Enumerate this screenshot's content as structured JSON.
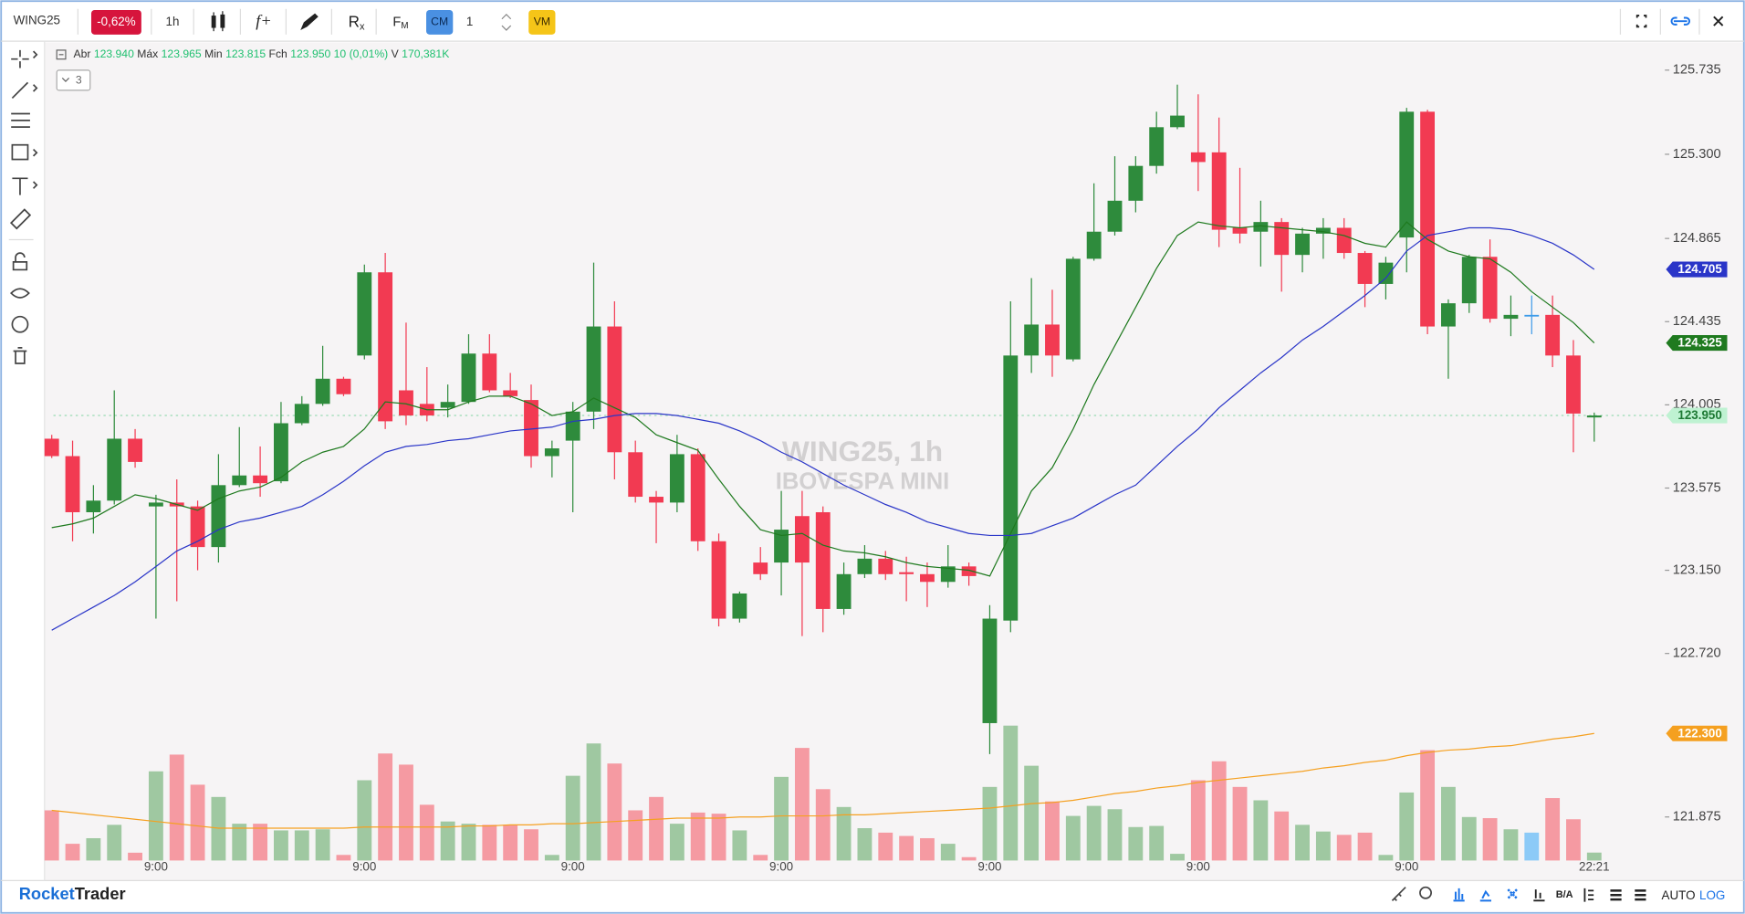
{
  "toolbar": {
    "symbol": "WING25",
    "change": "-0,62%",
    "interval": "1h",
    "indicators": "f+",
    "replay": "R",
    "replay_sub": "x",
    "fm": "F",
    "fm_sub": "M",
    "cm": "CM",
    "quantity": "1",
    "vm": "VM"
  },
  "legend": {
    "items": [
      {
        "label": "Abr",
        "value": "123.940"
      },
      {
        "label": "Máx",
        "value": "123.965"
      },
      {
        "label": "Min",
        "value": "123.815"
      },
      {
        "label": "Fch",
        "value": "123.950"
      }
    ],
    "change": "10 (0,01%)",
    "volume_label": "V",
    "volume": "170,381K",
    "collapsed_count": "3"
  },
  "watermark": {
    "title": "WING25, 1h",
    "subtitle": "IBOVESPA MINI"
  },
  "footer": {
    "brand_first": "Rocket",
    "brand_second": "Trader",
    "bid_ask": "B/A",
    "auto": "AUTO",
    "log": "LOG"
  },
  "chart_data": {
    "type": "candlestick",
    "categories": [
      null,
      null,
      null,
      null,
      null,
      "9:00",
      null,
      null,
      null,
      null,
      null,
      null,
      null,
      null,
      null,
      "9:00",
      null,
      null,
      null,
      null,
      null,
      null,
      null,
      null,
      null,
      "9:00",
      null,
      null,
      null,
      null,
      null,
      null,
      null,
      null,
      null,
      "9:00",
      null,
      null,
      null,
      null,
      null,
      null,
      null,
      null,
      null,
      "9:00",
      null,
      null,
      null,
      null,
      null,
      null,
      null,
      null,
      null,
      "9:00",
      null,
      null,
      null,
      null,
      null,
      null,
      null,
      null,
      null,
      "9:00",
      null,
      null,
      null,
      null,
      null,
      null,
      null,
      null,
      "22:21"
    ],
    "open": [
      123.83,
      123.74,
      123.45,
      123.51,
      123.83,
      123.48,
      123.5,
      123.48,
      123.27,
      123.59,
      123.64,
      123.61,
      123.91,
      124.01,
      124.14,
      124.26,
      124.69,
      124.08,
      124.01,
      123.99,
      124.02,
      124.27,
      124.08,
      124.03,
      123.74,
      123.82,
      123.97,
      124.41,
      123.76,
      123.53,
      123.5,
      123.75,
      123.3,
      122.9,
      123.19,
      123.19,
      123.43,
      123.45,
      122.95,
      123.13,
      123.21,
      123.14,
      123.13,
      123.09,
      123.17,
      122.36,
      122.89,
      124.26,
      124.42,
      124.24,
      124.76,
      124.9,
      125.06,
      125.24,
      125.44,
      125.31,
      125.31,
      124.92,
      124.9,
      124.95,
      124.78,
      124.89,
      124.92,
      124.79,
      124.63,
      124.87,
      125.52,
      124.41,
      124.53,
      124.77,
      124.45,
      124.47,
      124.47,
      124.26,
      123.94
    ],
    "high": [
      123.85,
      123.82,
      123.59,
      124.08,
      123.88,
      123.54,
      123.62,
      123.51,
      123.75,
      123.89,
      123.79,
      124.02,
      124.05,
      124.31,
      124.15,
      124.73,
      124.79,
      124.43,
      124.2,
      124.11,
      124.37,
      124.37,
      124.17,
      124.11,
      123.82,
      124.02,
      124.74,
      124.54,
      123.82,
      123.56,
      123.85,
      123.78,
      123.34,
      123.04,
      123.27,
      123.56,
      123.56,
      123.48,
      123.19,
      123.28,
      123.25,
      123.22,
      123.19,
      123.28,
      123.19,
      122.97,
      124.54,
      124.66,
      124.6,
      124.77,
      125.15,
      125.29,
      125.29,
      125.52,
      125.66,
      125.61,
      125.49,
      125.23,
      125.06,
      124.97,
      124.92,
      124.97,
      124.97,
      124.8,
      124.77,
      125.54,
      125.53,
      124.55,
      124.78,
      124.86,
      124.57,
      124.57,
      124.57,
      124.34,
      123.965
    ],
    "low": [
      123.73,
      123.3,
      123.34,
      123.49,
      123.68,
      122.9,
      122.99,
      123.15,
      123.19,
      123.58,
      123.53,
      123.6,
      123.9,
      124.0,
      124.05,
      124.24,
      123.88,
      123.9,
      123.92,
      123.94,
      124.01,
      124.07,
      124.04,
      123.68,
      123.63,
      123.45,
      123.88,
      123.62,
      123.5,
      123.29,
      123.45,
      123.25,
      122.86,
      122.88,
      123.1,
      123.02,
      122.81,
      122.83,
      122.92,
      123.11,
      123.1,
      122.99,
      122.96,
      123.06,
      123.07,
      122.2,
      122.83,
      124.17,
      124.15,
      124.23,
      124.75,
      124.88,
      125.0,
      125.2,
      125.43,
      125.11,
      124.82,
      124.84,
      124.72,
      124.59,
      124.69,
      124.76,
      124.76,
      124.51,
      124.55,
      124.69,
      124.37,
      124.14,
      124.48,
      124.43,
      124.36,
      124.37,
      124.2,
      123.76,
      123.815
    ],
    "close": [
      123.74,
      123.45,
      123.51,
      123.83,
      123.71,
      123.5,
      123.48,
      123.27,
      123.59,
      123.64,
      123.6,
      123.91,
      124.01,
      124.14,
      124.06,
      124.69,
      123.92,
      123.95,
      123.95,
      124.02,
      124.27,
      124.08,
      124.05,
      123.74,
      123.78,
      123.97,
      124.41,
      123.76,
      123.53,
      123.5,
      123.75,
      123.3,
      122.9,
      123.03,
      123.13,
      123.36,
      123.19,
      122.95,
      123.13,
      123.21,
      123.13,
      123.13,
      123.09,
      123.17,
      123.12,
      122.9,
      124.26,
      124.42,
      124.26,
      124.76,
      124.9,
      125.06,
      125.24,
      125.44,
      125.5,
      125.26,
      124.91,
      124.89,
      124.95,
      124.78,
      124.89,
      124.92,
      124.79,
      124.63,
      124.74,
      125.52,
      124.41,
      124.53,
      124.77,
      124.45,
      124.47,
      124.47,
      124.26,
      123.96,
      123.95
    ],
    "volume": [
      1080,
      360,
      480,
      768,
      168,
      1920,
      2280,
      1632,
      1368,
      792,
      792,
      648,
      648,
      672,
      120,
      1728,
      2304,
      2064,
      1200,
      840,
      792,
      768,
      768,
      672,
      120,
      1824,
      2520,
      2088,
      1080,
      1368,
      792,
      1032,
      1008,
      648,
      120,
      1800,
      2424,
      1536,
      1152,
      696,
      600,
      528,
      480,
      360,
      72,
      1584,
      2904,
      2040,
      1272,
      960,
      1176,
      1104,
      720,
      744,
      144,
      1728,
      2136,
      1584,
      1296,
      1056,
      768,
      624,
      552,
      600,
      120,
      1464,
      2376,
      1584,
      936,
      912,
      672,
      600,
      1344,
      888,
      170.381
    ],
    "colors": {
      "up": "#2e8b3c",
      "down": "#f23a52",
      "flat": "#3d9be9",
      "up_volume": "#9fc8a1",
      "down_volume": "#f59aa2",
      "flat_volume": "#8ccaf7"
    },
    "moving_averages": [
      {
        "color": "#1f7a1f",
        "last_label": "124.325",
        "values": [
          123.37,
          123.39,
          123.42,
          123.48,
          123.54,
          123.52,
          123.49,
          123.46,
          123.52,
          123.56,
          123.58,
          123.63,
          123.71,
          123.76,
          123.79,
          123.88,
          124.02,
          124.01,
          123.98,
          123.98,
          124.02,
          124.05,
          124.05,
          124.01,
          123.95,
          123.97,
          124.04,
          123.99,
          123.94,
          123.85,
          123.81,
          123.77,
          123.62,
          123.48,
          123.36,
          123.33,
          123.34,
          123.28,
          123.25,
          123.24,
          123.22,
          123.19,
          123.17,
          123.16,
          123.15,
          123.12,
          123.34,
          123.56,
          123.68,
          123.88,
          124.11,
          124.31,
          124.51,
          124.71,
          124.88,
          124.95,
          124.93,
          124.92,
          124.93,
          124.92,
          124.91,
          124.9,
          124.88,
          124.84,
          124.82,
          124.95,
          124.86,
          124.8,
          124.77,
          124.76,
          124.69,
          124.59,
          124.51,
          124.43,
          124.325
        ]
      },
      {
        "color": "#2a35c8",
        "last_label": "124.705",
        "values": [
          122.84,
          122.9,
          122.96,
          123.02,
          123.09,
          123.17,
          123.25,
          123.3,
          123.36,
          123.4,
          123.42,
          123.45,
          123.48,
          123.54,
          123.61,
          123.69,
          123.76,
          123.79,
          123.8,
          123.82,
          123.83,
          123.85,
          123.87,
          123.88,
          123.89,
          123.92,
          123.93,
          123.95,
          123.96,
          123.96,
          123.95,
          123.93,
          123.91,
          123.87,
          123.82,
          123.76,
          123.71,
          123.65,
          123.59,
          123.54,
          123.49,
          123.45,
          123.4,
          123.37,
          123.34,
          123.33,
          123.33,
          123.34,
          123.38,
          123.42,
          123.48,
          123.54,
          123.59,
          123.69,
          123.79,
          123.88,
          123.99,
          124.08,
          124.17,
          124.25,
          124.34,
          124.41,
          124.49,
          124.57,
          124.66,
          124.8,
          124.88,
          124.9,
          124.92,
          124.92,
          124.91,
          124.88,
          124.84,
          124.78,
          124.705
        ]
      }
    ],
    "volume_ma": {
      "color": "#f5a020",
      "last_label": "122.300",
      "values": [
        1080,
        1032,
        984,
        936,
        888,
        840,
        792,
        744,
        696,
        696,
        696,
        696,
        696,
        696,
        696,
        720,
        720,
        720,
        720,
        720,
        744,
        744,
        768,
        768,
        792,
        792,
        816,
        840,
        864,
        888,
        912,
        912,
        912,
        936,
        936,
        960,
        960,
        960,
        984,
        984,
        1008,
        1032,
        1056,
        1080,
        1104,
        1128,
        1176,
        1224,
        1248,
        1296,
        1368,
        1440,
        1488,
        1560,
        1608,
        1680,
        1728,
        1776,
        1824,
        1872,
        1920,
        1992,
        2040,
        2112,
        2160,
        2256,
        2328,
        2376,
        2400,
        2448,
        2472,
        2544,
        2616,
        2664,
        2736
      ]
    },
    "last_price_label": {
      "label": "123.950",
      "color": "#bff2d2",
      "text_color": "#1e7a35"
    },
    "ylim": [
      121.65,
      125.867
    ],
    "yticks": [
      125.735,
      {
        "value": 125.3,
        "label": "125.300"
      },
      124.865,
      124.435,
      124.005,
      123.575,
      {
        "value": 123.15,
        "label": "123.150"
      },
      {
        "value": 122.72,
        "label": "122.720"
      },
      121.875
    ],
    "volume_lim": [
      0,
      3000
    ],
    "grid": false
  }
}
